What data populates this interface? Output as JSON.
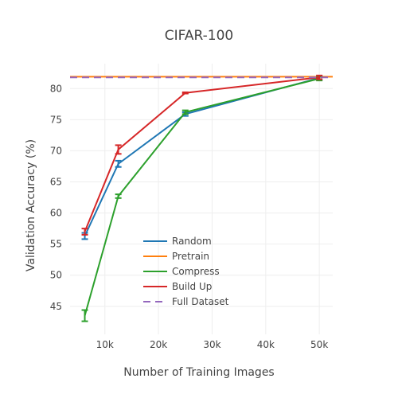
{
  "chart_data": {
    "type": "line",
    "title": "CIFAR-100",
    "xlabel": "Number of Training Images",
    "ylabel": "Validation Accuracy (%)",
    "xlim": [
      3500,
      52500
    ],
    "ylim": [
      40.5,
      84
    ],
    "x_ticks": [
      10000,
      20000,
      30000,
      40000,
      50000
    ],
    "x_tick_labels": [
      "10k",
      "20k",
      "30k",
      "40k",
      "50k"
    ],
    "y_ticks": [
      45,
      50,
      55,
      60,
      65,
      70,
      75,
      80
    ],
    "y_tick_labels": [
      "45",
      "50",
      "55",
      "60",
      "65",
      "70",
      "75",
      "80"
    ],
    "grid": true,
    "legend_position": "bottom-center",
    "series": [
      {
        "name": "Random",
        "color": "#1f77b4",
        "dash": "solid",
        "x": [
          6250,
          12500,
          25000,
          50000
        ],
        "y": [
          56.3,
          67.9,
          75.9,
          81.7
        ],
        "err": [
          0.5,
          0.5,
          0.3,
          0.3
        ]
      },
      {
        "name": "Pretrain",
        "color": "#ff7f0e",
        "dash": "solid",
        "x": [
          3500,
          12500,
          25000,
          52500
        ],
        "y": [
          81.9,
          81.9,
          81.9,
          81.9
        ],
        "err": [
          0,
          0,
          0,
          0
        ]
      },
      {
        "name": "Compress",
        "color": "#2ca02c",
        "dash": "solid",
        "x": [
          6250,
          12500,
          25000,
          50000
        ],
        "y": [
          43.5,
          62.7,
          76.2,
          81.6
        ],
        "err": [
          0.9,
          0.3,
          0.3,
          0.3
        ]
      },
      {
        "name": "Build Up",
        "color": "#d62728",
        "dash": "solid",
        "x": [
          6250,
          12500,
          25000,
          50000
        ],
        "y": [
          57.0,
          70.2,
          79.3,
          81.8
        ],
        "err": [
          0.5,
          0.7,
          0.1,
          0.3
        ]
      },
      {
        "name": "Full Dataset",
        "color": "#9467bd",
        "dash": "dash",
        "x": [
          3500,
          52500
        ],
        "y": [
          81.8,
          81.8
        ],
        "err": [
          0,
          0
        ]
      }
    ]
  }
}
